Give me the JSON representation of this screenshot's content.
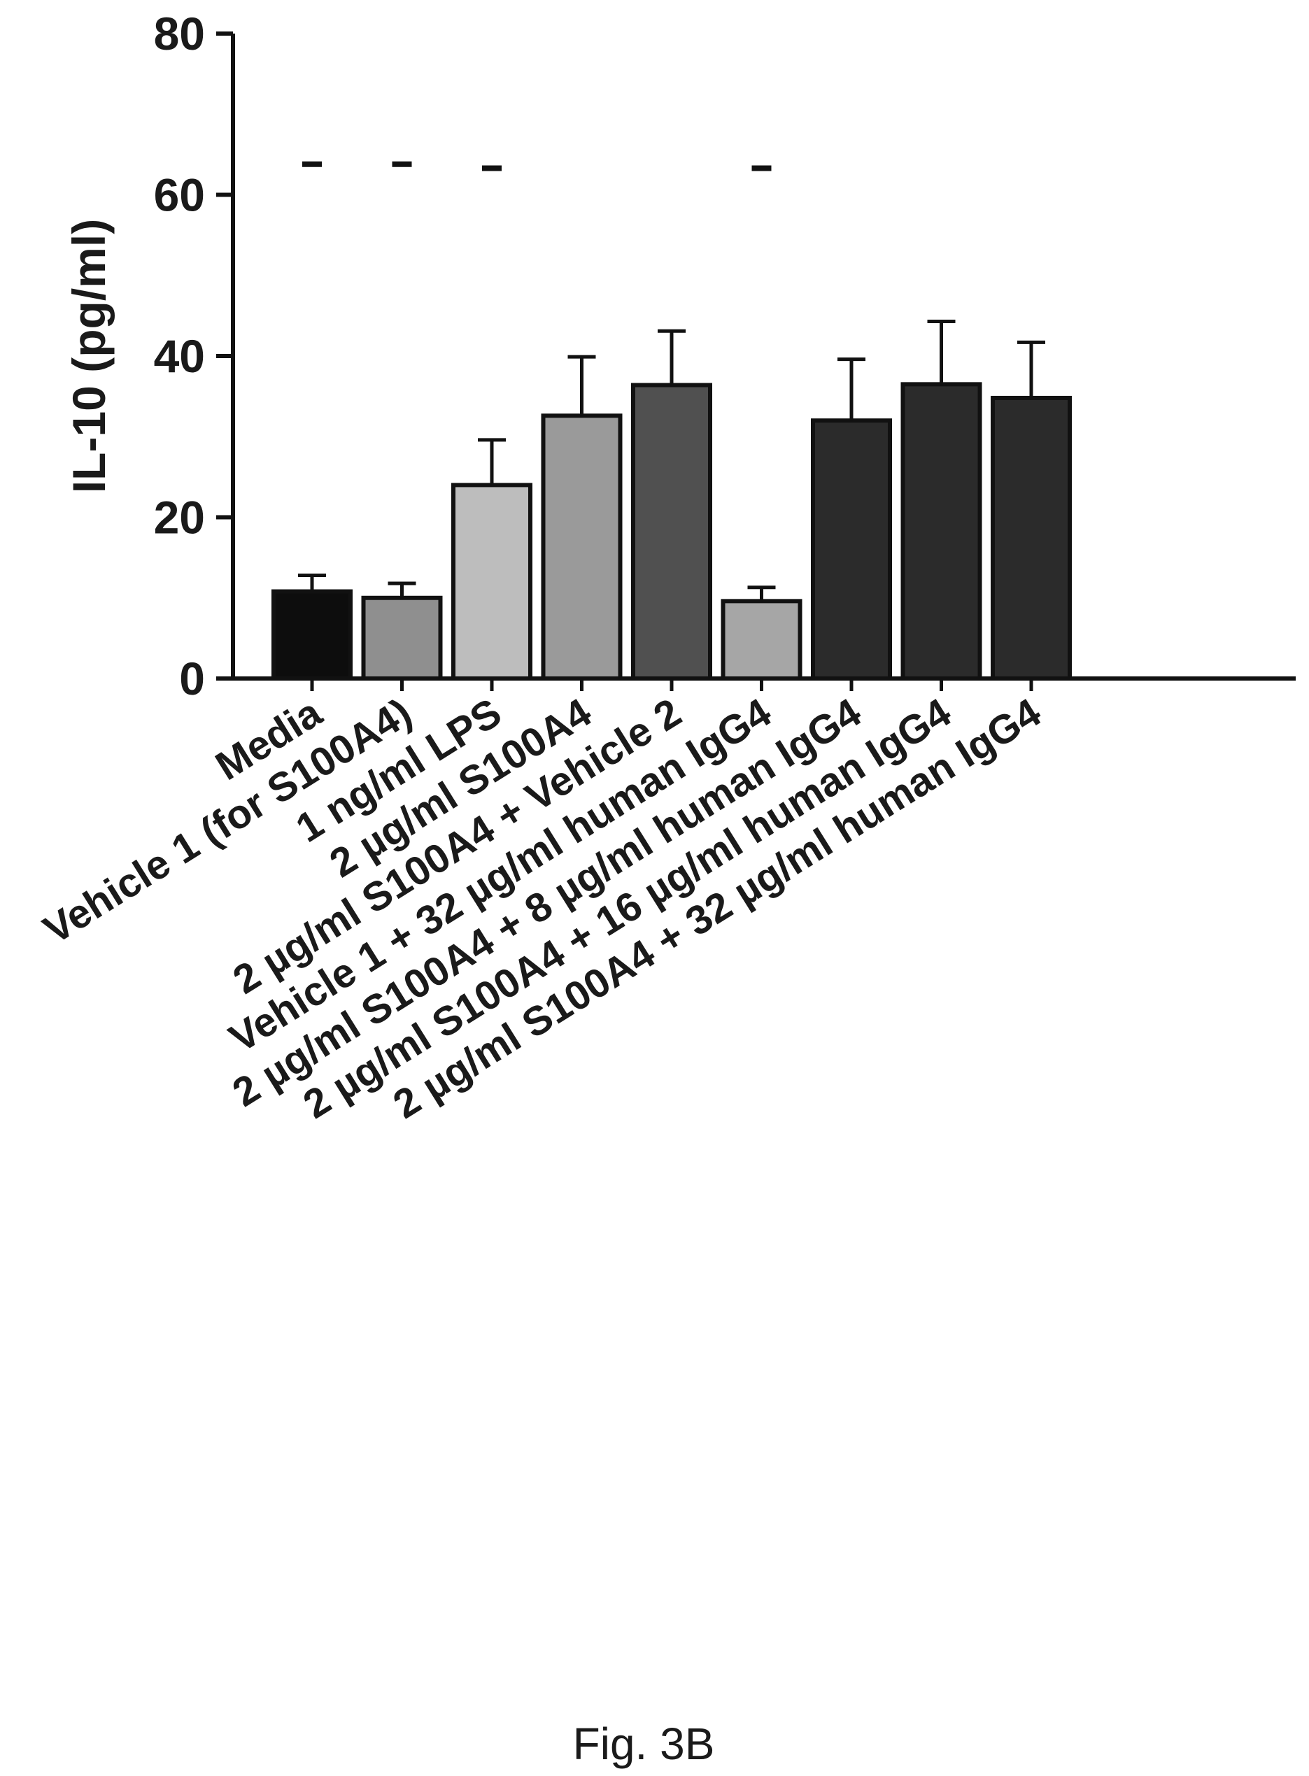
{
  "chart_data": {
    "type": "bar",
    "ylabel": "IL-10 (pg/ml)",
    "ylim": [
      0,
      80
    ],
    "yticks": [
      0,
      20,
      40,
      60,
      80
    ],
    "categories": [
      "Media",
      "Vehicle 1 (for S100A4)",
      "1 ng/ml LPS",
      "2 µg/ml S100A4",
      "2 µg/ml S100A4 + Vehicle 2",
      "Vehicle 1 + 32 µg/ml human IgG4",
      "2 µg/ml S100A4 + 8 µg/ml human IgG4",
      "2 µg/ml S100A4 + 16 µg/ml human IgG4",
      "2 µg/ml S100A4 + 32 µg/ml human IgG4"
    ],
    "values": [
      10.8,
      10.0,
      24.0,
      32.6,
      36.4,
      9.6,
      32.0,
      36.5,
      34.8
    ],
    "errors": [
      2.0,
      1.8,
      5.6,
      7.3,
      6.7,
      1.7,
      7.6,
      7.8,
      6.9
    ],
    "bar_colors": [
      "#0d0d0d",
      "#8f8f8f",
      "#bdbdbd",
      "#9a9a9a",
      "#505050",
      "#a6a6a6",
      "#2b2b2b",
      "#2b2b2b",
      "#2b2b2b"
    ],
    "markers": [
      {
        "category_index": 0,
        "y": 63.8
      },
      {
        "category_index": 1,
        "y": 63.8
      },
      {
        "category_index": 2,
        "y": 63.3
      },
      {
        "category_index": 5,
        "y": 63.3
      }
    ],
    "grid": false,
    "legend": "none"
  },
  "figure": {
    "caption": "Fig. 3B"
  }
}
